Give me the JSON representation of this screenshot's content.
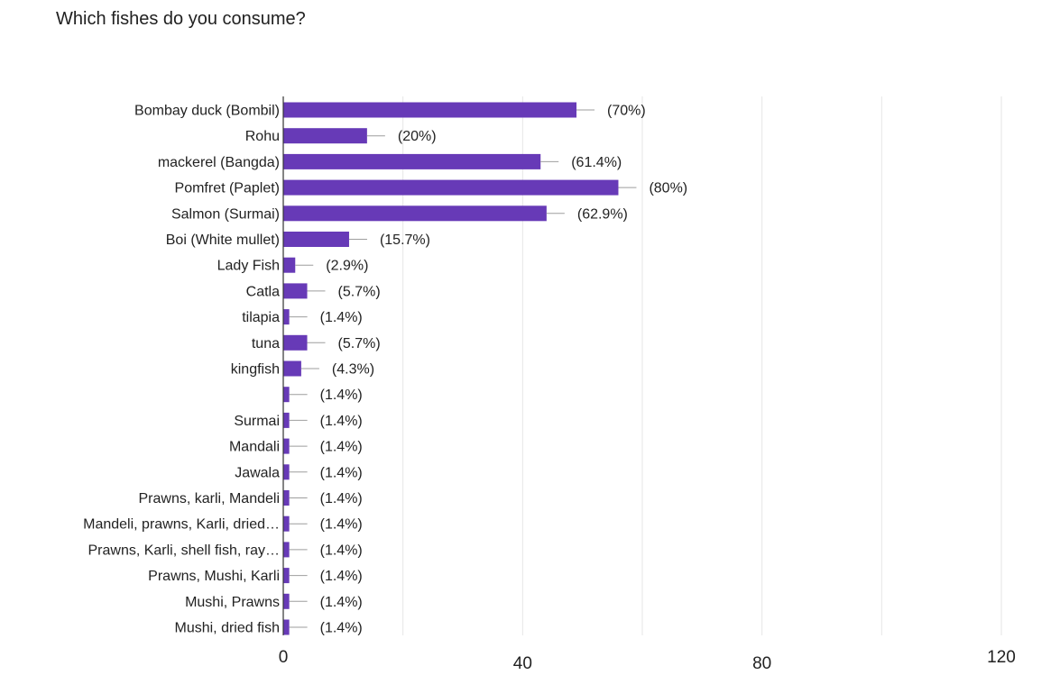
{
  "chart_data": {
    "type": "bar",
    "orientation": "horizontal",
    "title": "Which fishes do you consume?",
    "categories": [
      "Bombay duck (Bombil)",
      "Rohu",
      "mackerel (Bangda)",
      "Pomfret (Paplet)",
      "Salmon (Surmai)",
      "Boi (White mullet)",
      "Lady Fish",
      "Catla",
      "tilapia",
      "tuna",
      "kingfish",
      "",
      "Surmai",
      "Mandali",
      "Jawala",
      "Prawns, karli, Mandeli",
      "Mandeli, prawns, Karli, dried…",
      "Prawns, Karli, shell fish, ray…",
      "Prawns, Mushi, Karli",
      "Mushi, Prawns",
      "Mushi, dried fish"
    ],
    "values": [
      49,
      14,
      43,
      56,
      44,
      11,
      2,
      4,
      1,
      4,
      3,
      1,
      1,
      1,
      1,
      1,
      1,
      1,
      1,
      1,
      1
    ],
    "labels": [
      "(70%)",
      "(20%)",
      "(61.4%)",
      "(80%)",
      "(62.9%)",
      "(15.7%)",
      "(2.9%)",
      "(5.7%)",
      "(1.4%)",
      "(5.7%)",
      "(4.3%)",
      "(1.4%)",
      "(1.4%)",
      "(1.4%)",
      "(1.4%)",
      "(1.4%)",
      "(1.4%)",
      "(1.4%)",
      "(1.4%)",
      "(1.4%)",
      "(1.4%)"
    ],
    "xlim": [
      0,
      120
    ],
    "xticks": [
      "0",
      "40",
      "80",
      "120"
    ],
    "grid": true,
    "bar_color": "#673ab7"
  }
}
